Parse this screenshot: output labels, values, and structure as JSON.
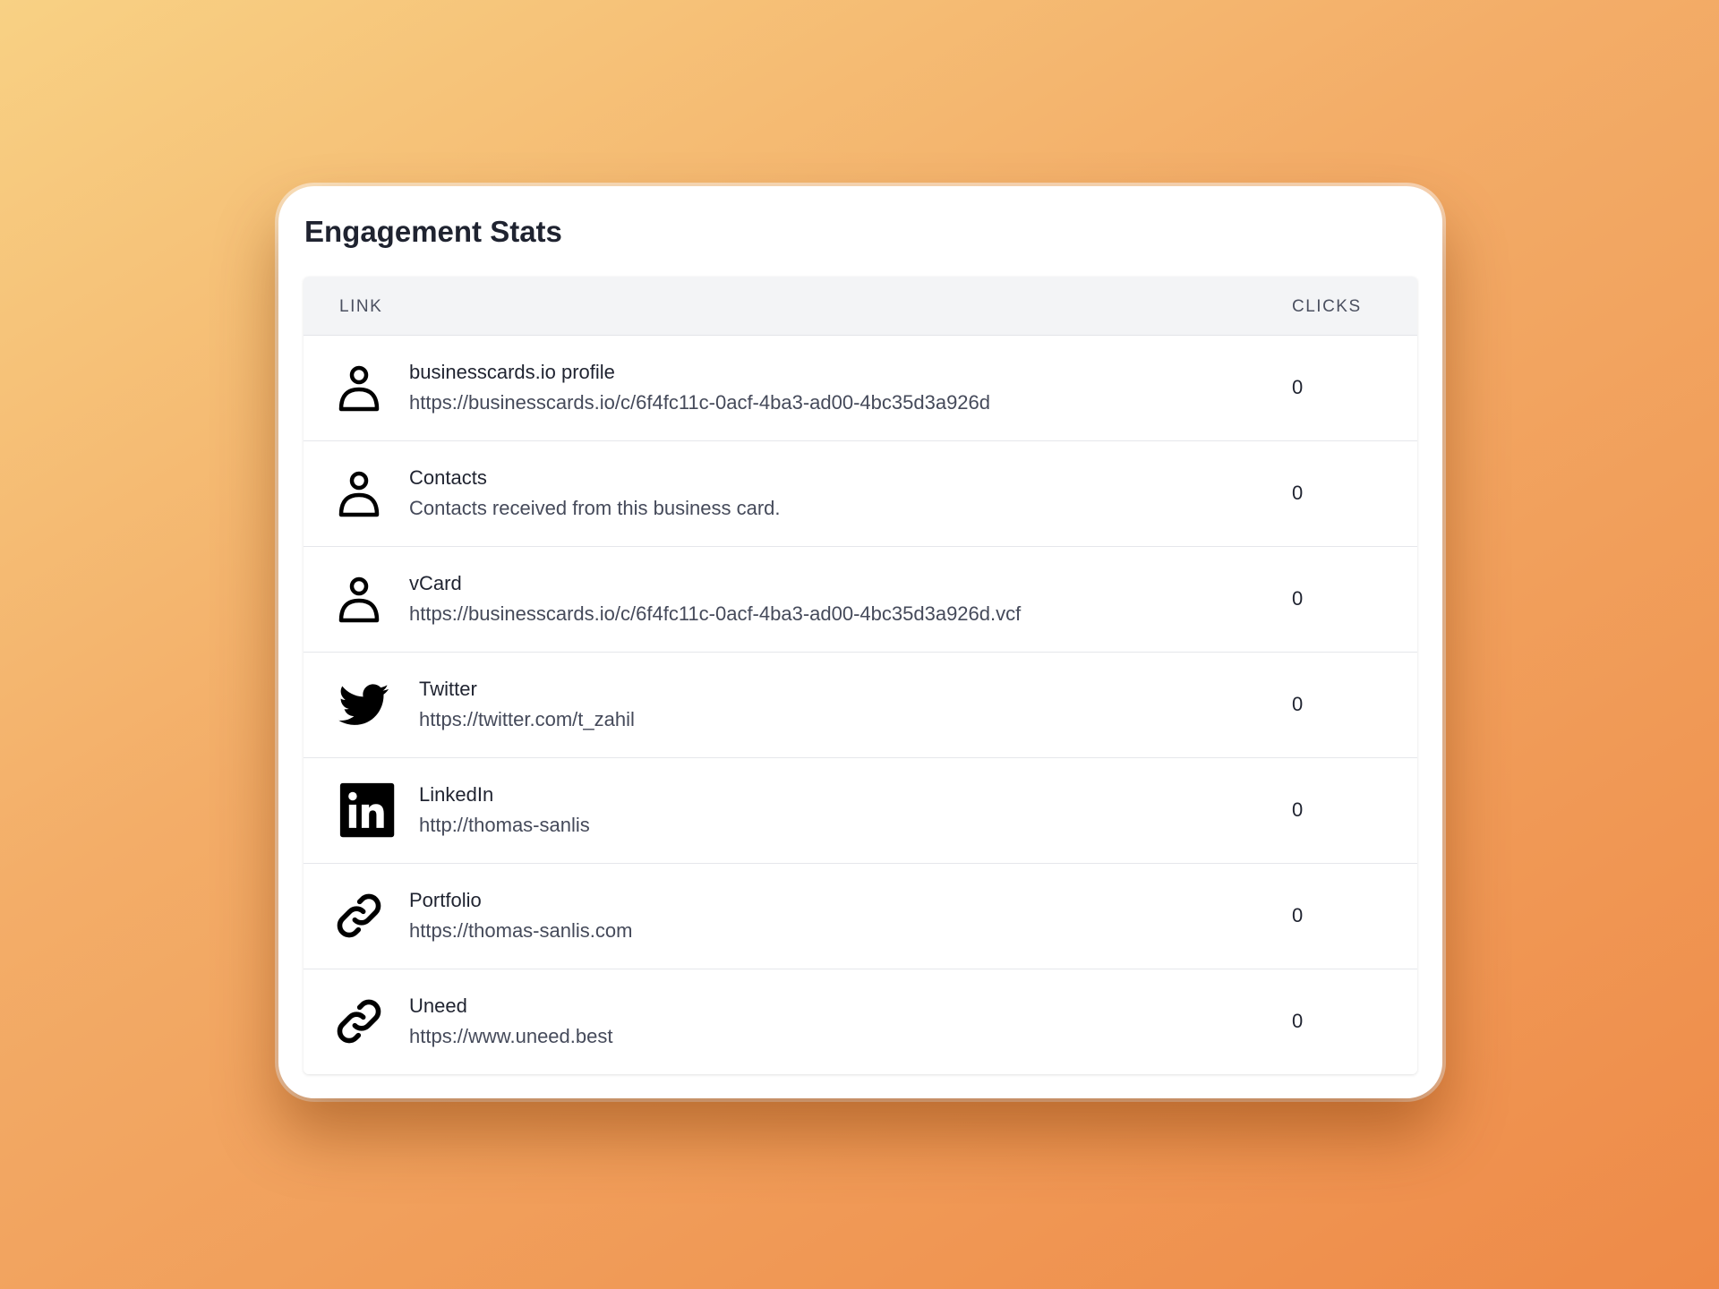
{
  "card": {
    "title": "Engagement Stats"
  },
  "table": {
    "headers": {
      "link": "LINK",
      "clicks": "CLICKS"
    },
    "rows": [
      {
        "icon": "user-icon",
        "name": "businesscards.io profile",
        "sub": "https://businesscards.io/c/6f4fc11c-0acf-4ba3-ad00-4bc35d3a926d",
        "clicks": "0"
      },
      {
        "icon": "user-icon",
        "name": "Contacts",
        "sub": "Contacts received from this business card.",
        "clicks": "0"
      },
      {
        "icon": "user-icon",
        "name": "vCard",
        "sub": "https://businesscards.io/c/6f4fc11c-0acf-4ba3-ad00-4bc35d3a926d.vcf",
        "clicks": "0"
      },
      {
        "icon": "twitter-icon",
        "name": "Twitter",
        "sub": "https://twitter.com/t_zahil",
        "clicks": "0"
      },
      {
        "icon": "linkedin-icon",
        "name": "LinkedIn",
        "sub": "http://thomas-sanlis",
        "clicks": "0"
      },
      {
        "icon": "link-icon",
        "name": "Portfolio",
        "sub": "https://thomas-sanlis.com",
        "clicks": "0"
      },
      {
        "icon": "link-icon",
        "name": "Uneed",
        "sub": "https://www.uneed.best",
        "clicks": "0"
      }
    ]
  }
}
